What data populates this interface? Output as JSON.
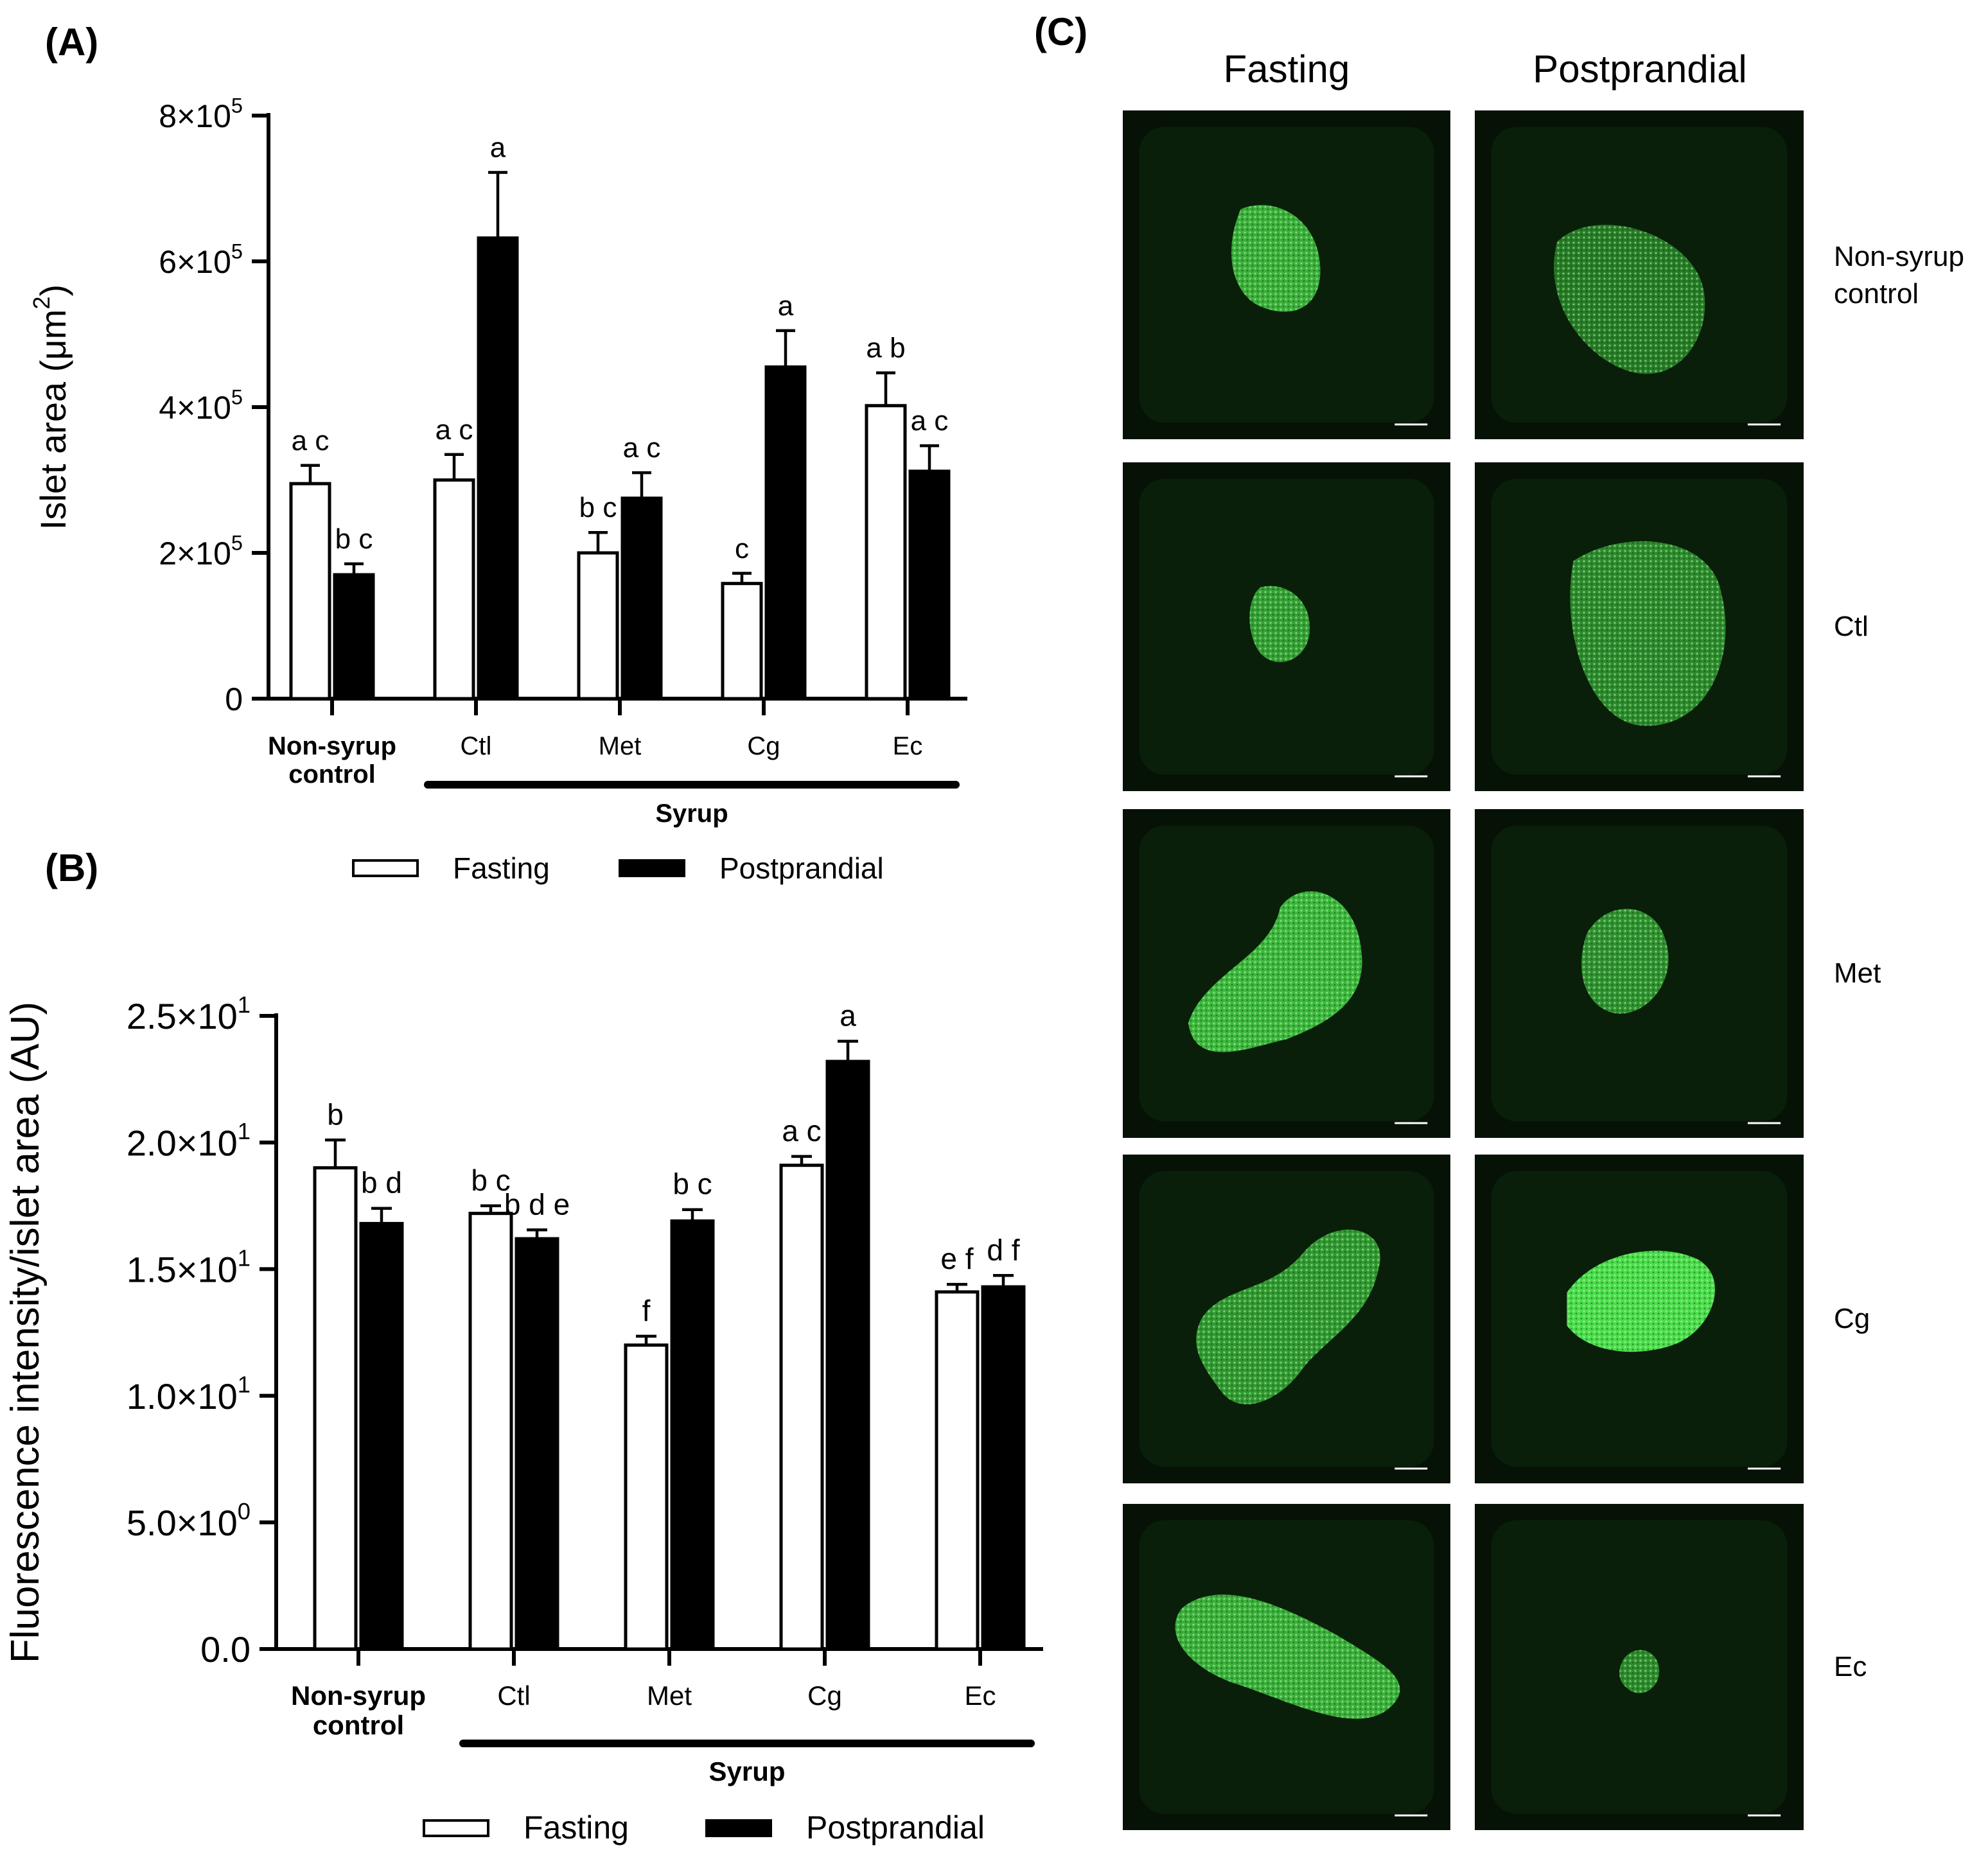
{
  "panel_labels": {
    "a": "(A)",
    "b": "(B)",
    "c": "(C)"
  },
  "chart_data": [
    {
      "type": "bar",
      "panel": "(A)",
      "categories": [
        "Non-syrup control",
        "Ctl",
        "Met",
        "Cg",
        "Ec"
      ],
      "category_lines": [
        [
          "Non-syrup",
          "control"
        ],
        [
          "Ctl"
        ],
        [
          "Met"
        ],
        [
          "Cg"
        ],
        [
          "Ec"
        ]
      ],
      "group_label": "Syrup",
      "series": [
        {
          "name": "Fasting",
          "values": [
            295000,
            300000,
            200000,
            158000,
            402000
          ],
          "errors": [
            25000,
            35000,
            28000,
            14000,
            45000
          ],
          "letters": [
            "a c",
            "a c",
            "b c",
            "c",
            "a b"
          ],
          "color": "#ffffff"
        },
        {
          "name": "Postprandial",
          "values": [
            170000,
            632000,
            275000,
            455000,
            312000
          ],
          "errors": [
            15000,
            90000,
            35000,
            50000,
            35000
          ],
          "letters": [
            "b c",
            "a",
            "a c",
            "a",
            "a c"
          ],
          "color": "#000000"
        }
      ],
      "ylabel_main": "Islet area (",
      "ylabel_unit": "μm",
      "ylabel_sup": "2",
      "ylabel_end": ")",
      "ylim": [
        0,
        800000
      ],
      "yticks": [
        {
          "value": 0,
          "base": "0",
          "sup": ""
        },
        {
          "value": 200000,
          "base": "2×10",
          "sup": "5"
        },
        {
          "value": 400000,
          "base": "4×10",
          "sup": "5"
        },
        {
          "value": 600000,
          "base": "6×10",
          "sup": "5"
        },
        {
          "value": 800000,
          "base": "8×10",
          "sup": "5"
        }
      ],
      "legend": [
        "Fasting",
        "Postprandial"
      ],
      "grid": false
    },
    {
      "type": "bar",
      "panel": "(B)",
      "categories": [
        "Non-syrup control",
        "Ctl",
        "Met",
        "Cg",
        "Ec"
      ],
      "category_lines": [
        [
          "Non-syrup",
          "control"
        ],
        [
          "Ctl"
        ],
        [
          "Met"
        ],
        [
          "Cg"
        ],
        [
          "Ec"
        ]
      ],
      "group_label": "Syrup",
      "series": [
        {
          "name": "Fasting",
          "values": [
            19.0,
            17.2,
            12.0,
            19.1,
            14.1
          ],
          "errors": [
            1.1,
            0.3,
            0.35,
            0.35,
            0.3
          ],
          "letters": [
            "b",
            "b c",
            "f",
            "a c",
            "e f"
          ],
          "color": "#ffffff"
        },
        {
          "name": "Postprandial",
          "values": [
            16.8,
            16.2,
            16.9,
            23.2,
            14.3
          ],
          "errors": [
            0.6,
            0.35,
            0.45,
            0.8,
            0.45
          ],
          "letters": [
            "b d",
            "b d e",
            "b c",
            "a",
            "d f"
          ],
          "color": "#000000"
        }
      ],
      "ylabel": "Fluorescence intensity/islet area (AU)",
      "ylim": [
        0,
        25
      ],
      "yticks": [
        {
          "value": 0,
          "base": "0.0",
          "sup": ""
        },
        {
          "value": 5,
          "base": "5.0×10",
          "sup": "0"
        },
        {
          "value": 10,
          "base": "1.0×10",
          "sup": "1"
        },
        {
          "value": 15,
          "base": "1.5×10",
          "sup": "1"
        },
        {
          "value": 20,
          "base": "2.0×10",
          "sup": "1"
        },
        {
          "value": 25,
          "base": "2.5×10",
          "sup": "1"
        }
      ],
      "legend": [
        "Fasting",
        "Postprandial"
      ],
      "grid": false
    }
  ],
  "micrographs": {
    "column_headers": [
      "Fasting",
      "Postprandial"
    ],
    "rows": [
      {
        "label_lines": [
          "Non-syrup",
          "control"
        ],
        "fasting_intensity": 0.7,
        "postprandial_intensity": 0.35
      },
      {
        "label_lines": [
          "Ctl"
        ],
        "fasting_intensity": 0.6,
        "postprandial_intensity": 0.45
      },
      {
        "label_lines": [
          "Met"
        ],
        "fasting_intensity": 0.75,
        "postprandial_intensity": 0.5
      },
      {
        "label_lines": [
          "Cg"
        ],
        "fasting_intensity": 0.55,
        "postprandial_intensity": 1.0
      },
      {
        "label_lines": [
          "Ec"
        ],
        "fasting_intensity": 0.7,
        "postprandial_intensity": 0.45
      }
    ],
    "image_color": "#000000",
    "stain_color": "#4cd24c"
  }
}
